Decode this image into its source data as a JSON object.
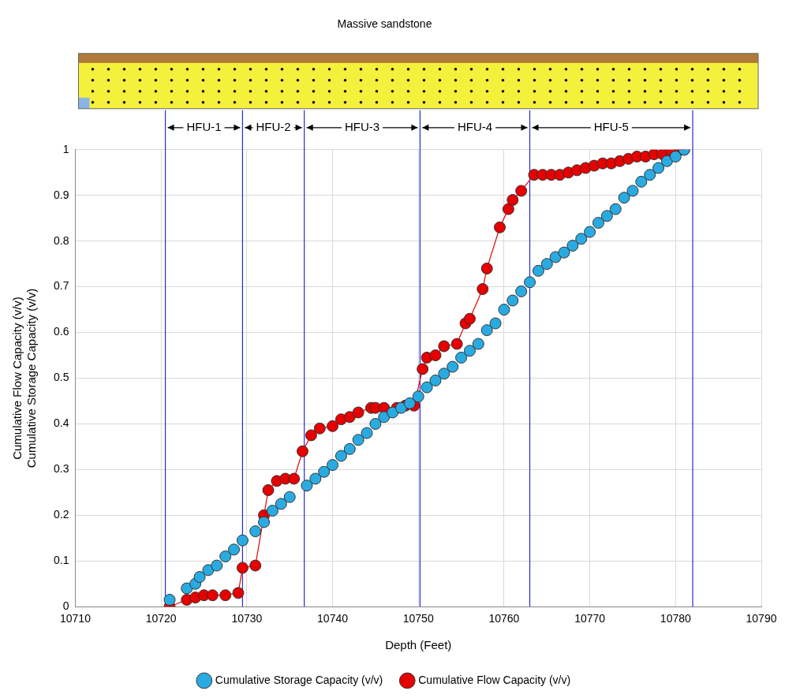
{
  "chart_data": {
    "type": "scatter",
    "title": "Massive sandstone",
    "x_label": "Depth (Feet)",
    "y_label": [
      "Cumulative Flow Capacity (v/v)",
      "Cumulative Storage Capacity (v/v)"
    ],
    "xlim": [
      10710,
      10790
    ],
    "xticks": [
      10710,
      10720,
      10730,
      10740,
      10750,
      10760,
      10770,
      10780,
      10790
    ],
    "ylim": [
      0,
      1
    ],
    "yticks": [
      0,
      0.1,
      0.2,
      0.3,
      0.4,
      0.5,
      0.6,
      0.7,
      0.8,
      0.9,
      1
    ],
    "grid": true,
    "legend": "bottom",
    "zones": [
      {
        "label": "HFU-1",
        "start": 10720.5,
        "end": 10729.5
      },
      {
        "label": "HFU-2",
        "start": 10729.5,
        "end": 10736.7
      },
      {
        "label": "HFU-3",
        "start": 10736.7,
        "end": 10750.2
      },
      {
        "label": "HFU-4",
        "start": 10750.2,
        "end": 10763
      },
      {
        "label": "HFU-5",
        "start": 10763,
        "end": 10782
      }
    ],
    "series": [
      {
        "name": "Cumulative Storage Capacity (v/v)",
        "color": "#29abe2",
        "marker": "circle",
        "line_style": "none",
        "x": [
          10721,
          10723,
          10724,
          10724.5,
          10725.5,
          10726.5,
          10727.5,
          10728.5,
          10729.5,
          10731,
          10732,
          10733,
          10734,
          10735,
          10737,
          10738,
          10739,
          10740,
          10741,
          10742,
          10743,
          10744,
          10745,
          10746,
          10747,
          10748,
          10749,
          10750,
          10751,
          10752,
          10753,
          10754,
          10755,
          10756,
          10757,
          10758,
          10759,
          10760,
          10761,
          10762,
          10763,
          10764,
          10765,
          10766,
          10767,
          10768,
          10769,
          10770,
          10771,
          10772,
          10773,
          10774,
          10775,
          10776,
          10777,
          10778,
          10779,
          10780,
          10781
        ],
        "values": [
          0.015,
          0.04,
          0.05,
          0.065,
          0.08,
          0.09,
          0.11,
          0.125,
          0.145,
          0.165,
          0.185,
          0.21,
          0.225,
          0.24,
          0.265,
          0.28,
          0.295,
          0.31,
          0.33,
          0.345,
          0.365,
          0.38,
          0.4,
          0.415,
          0.425,
          0.435,
          0.445,
          0.46,
          0.48,
          0.495,
          0.51,
          0.525,
          0.545,
          0.56,
          0.575,
          0.605,
          0.62,
          0.65,
          0.67,
          0.69,
          0.71,
          0.735,
          0.75,
          0.765,
          0.775,
          0.79,
          0.805,
          0.82,
          0.84,
          0.855,
          0.87,
          0.895,
          0.91,
          0.93,
          0.945,
          0.96,
          0.975,
          0.985,
          1.0
        ]
      },
      {
        "name": "Cumulative Flow Capacity (v/v)",
        "color": "#e60000",
        "marker": "circle",
        "line_style": "solid",
        "x": [
          10721,
          10723,
          10724,
          10725,
          10726,
          10727.5,
          10729,
          10729.5,
          10731,
          10732,
          10732.5,
          10733.5,
          10734.5,
          10735.5,
          10736.5,
          10737.5,
          10738.5,
          10740,
          10741,
          10742,
          10743,
          10744.5,
          10745,
          10746,
          10747.5,
          10748.5,
          10749.5,
          10750.5,
          10751,
          10752,
          10753,
          10754.5,
          10755.5,
          10756,
          10757.5,
          10758,
          10759.5,
          10760.5,
          10761,
          10762,
          10763.5,
          10764.5,
          10765.5,
          10766.5,
          10767.5,
          10768.5,
          10769.5,
          10770.5,
          10771.5,
          10772.5,
          10773.5,
          10774.5,
          10775.5,
          10776.5,
          10777.5,
          10778.5,
          10779.5,
          10780.5,
          10781
        ],
        "values": [
          0.0,
          0.015,
          0.02,
          0.025,
          0.025,
          0.025,
          0.03,
          0.085,
          0.09,
          0.2,
          0.255,
          0.275,
          0.28,
          0.28,
          0.34,
          0.375,
          0.39,
          0.395,
          0.41,
          0.415,
          0.425,
          0.435,
          0.435,
          0.435,
          0.435,
          0.44,
          0.44,
          0.52,
          0.545,
          0.55,
          0.57,
          0.575,
          0.62,
          0.63,
          0.695,
          0.74,
          0.83,
          0.87,
          0.89,
          0.91,
          0.945,
          0.945,
          0.945,
          0.945,
          0.95,
          0.955,
          0.96,
          0.965,
          0.97,
          0.97,
          0.975,
          0.98,
          0.985,
          0.985,
          0.99,
          0.99,
          0.995,
          1.0,
          1.0
        ]
      }
    ]
  }
}
